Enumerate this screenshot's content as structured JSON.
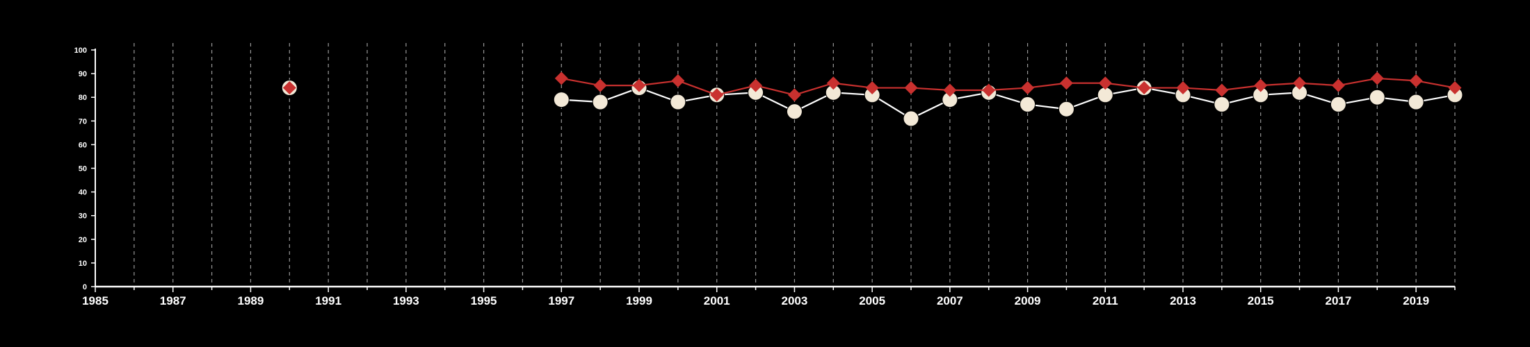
{
  "chart_data": {
    "type": "line",
    "xlim": [
      1985,
      2020
    ],
    "ylim": [
      0,
      100
    ],
    "x_ticks": [
      1985,
      1987,
      1989,
      1991,
      1993,
      1995,
      1997,
      1999,
      2001,
      2003,
      2005,
      2007,
      2009,
      2011,
      2013,
      2015,
      2017,
      2019
    ],
    "y_ticks": [
      0,
      10,
      20,
      30,
      40,
      50,
      60,
      70,
      80,
      90,
      100
    ],
    "grid_x": true,
    "grid_y": false,
    "series": [
      {
        "marker": "circle",
        "color": "#f3e9d7",
        "line_color": "#ffffff",
        "points": [
          [
            1990,
            84
          ],
          [
            1997,
            79
          ],
          [
            1998,
            78
          ],
          [
            1999,
            84
          ],
          [
            2000,
            78
          ],
          [
            2001,
            81
          ],
          [
            2002,
            82
          ],
          [
            2003,
            74
          ],
          [
            2004,
            82
          ],
          [
            2005,
            81
          ],
          [
            2006,
            71
          ],
          [
            2007,
            79
          ],
          [
            2008,
            82
          ],
          [
            2009,
            77
          ],
          [
            2010,
            75
          ],
          [
            2011,
            81
          ],
          [
            2012,
            84
          ],
          [
            2013,
            81
          ],
          [
            2014,
            77
          ],
          [
            2015,
            81
          ],
          [
            2016,
            82
          ],
          [
            2017,
            77
          ],
          [
            2018,
            80
          ],
          [
            2019,
            78
          ],
          [
            2020,
            81
          ]
        ]
      },
      {
        "marker": "diamond",
        "color": "#c9312f",
        "line_color": "#c9312f",
        "points": [
          [
            1990,
            84
          ],
          [
            1997,
            88
          ],
          [
            1998,
            85
          ],
          [
            1999,
            85
          ],
          [
            2000,
            87
          ],
          [
            2001,
            81
          ],
          [
            2002,
            85
          ],
          [
            2003,
            81
          ],
          [
            2004,
            86
          ],
          [
            2005,
            84
          ],
          [
            2006,
            84
          ],
          [
            2007,
            83
          ],
          [
            2008,
            83
          ],
          [
            2009,
            84
          ],
          [
            2010,
            86
          ],
          [
            2011,
            86
          ],
          [
            2012,
            84
          ],
          [
            2013,
            84
          ],
          [
            2014,
            83
          ],
          [
            2015,
            85
          ],
          [
            2016,
            86
          ],
          [
            2017,
            85
          ],
          [
            2018,
            88
          ],
          [
            2019,
            87
          ],
          [
            2020,
            84
          ]
        ]
      }
    ]
  }
}
